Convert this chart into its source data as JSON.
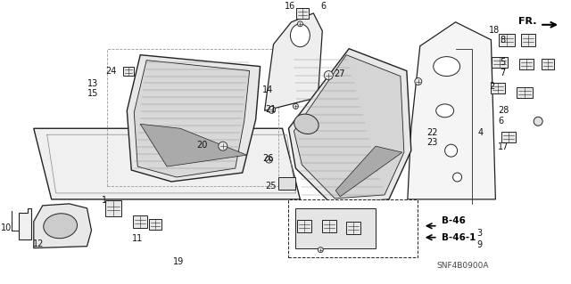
{
  "bg_color": "#ffffff",
  "diagram_code": "SNF4B0900A",
  "line_color": "#222222",
  "label_color": "#111111",
  "fr_text": "FR.",
  "b46": "B-46",
  "b461": "B-46-1"
}
